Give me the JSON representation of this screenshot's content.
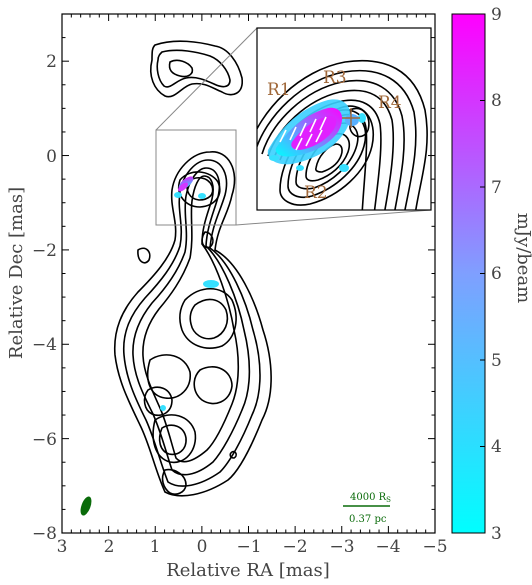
{
  "chart_data": {
    "type": "contour",
    "xlabel": "Relative RA [mas]",
    "ylabel": "Relative Dec [mas]",
    "xlim": [
      3,
      -5
    ],
    "ylim": [
      -8,
      3
    ],
    "xticks": [
      "3",
      "2",
      "1",
      "0",
      "−1",
      "−2",
      "−3",
      "−4",
      "−5"
    ],
    "yticks": [
      "2",
      "0",
      "−2",
      "−4",
      "−6",
      "−8"
    ],
    "colorbar": {
      "label": "mJy/beam",
      "range": [
        3,
        9
      ],
      "ticks": [
        "3",
        "4",
        "5",
        "6",
        "7",
        "8",
        "9"
      ],
      "colors": [
        "#00ffff",
        "#ff00ff"
      ]
    },
    "inset_labels": [
      "R1",
      "R2",
      "R3",
      "R4"
    ],
    "scalebar": {
      "top": "4000 R",
      "sub": "S",
      "bottom": "0.37 pc"
    },
    "core_position": [
      0.0,
      0.0
    ],
    "grid": false
  }
}
